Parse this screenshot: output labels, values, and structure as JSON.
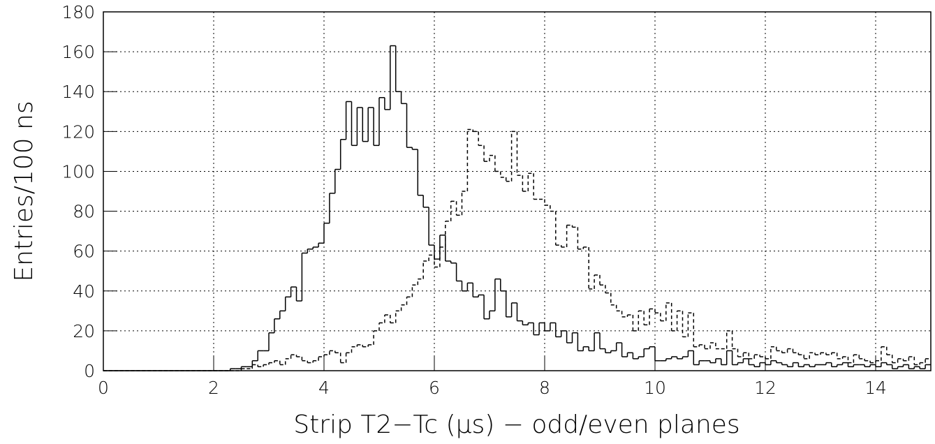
{
  "chart_data": {
    "type": "histogram",
    "xlabel": "Strip T2−Tc (μs) − odd/even planes",
    "ylabel": "Entries/100 ns",
    "bins": [
      0,
      0.1,
      0.2,
      0.3,
      0.4,
      0.5,
      0.6,
      0.7,
      0.8,
      0.9,
      1,
      1.1,
      1.2,
      1.3,
      1.4,
      1.5,
      1.6,
      1.7,
      1.8,
      1.9,
      2,
      2.1,
      2.2,
      2.3,
      2.4,
      2.5,
      2.6,
      2.7,
      2.8,
      2.9,
      3,
      3.1,
      3.2,
      3.3,
      3.4,
      3.5,
      3.6,
      3.7,
      3.8,
      3.9,
      4,
      4.1,
      4.2,
      4.3,
      4.4,
      4.5,
      4.6,
      4.7,
      4.8,
      4.9,
      5,
      5.1,
      5.2,
      5.3,
      5.4,
      5.5,
      5.6,
      5.7,
      5.8,
      5.9,
      6,
      6.1,
      6.2,
      6.3,
      6.4,
      6.5,
      6.6,
      6.7,
      6.8,
      6.9,
      7,
      7.1,
      7.2,
      7.3,
      7.4,
      7.5,
      7.6,
      7.7,
      7.8,
      7.9,
      8,
      8.1,
      8.2,
      8.3,
      8.4,
      8.5,
      8.6,
      8.7,
      8.8,
      8.9,
      9,
      9.1,
      9.2,
      9.3,
      9.4,
      9.5,
      9.6,
      9.7,
      9.8,
      9.9,
      10,
      10.1,
      10.2,
      10.3,
      10.4,
      10.5,
      10.6,
      10.7,
      10.8,
      10.9,
      11,
      11.1,
      11.2,
      11.3,
      11.4,
      11.5,
      11.6,
      11.7,
      11.8,
      11.9,
      12,
      12.1,
      12.2,
      12.3,
      12.4,
      12.5,
      12.6,
      12.7,
      12.8,
      12.9,
      13,
      13.1,
      13.2,
      13.3,
      13.4,
      13.5,
      13.6,
      13.7,
      13.8,
      13.9,
      14,
      14.1,
      14.2,
      14.3,
      14.4,
      14.5,
      14.6,
      14.7,
      14.8,
      14.9,
      15
    ],
    "series": [
      {
        "color": "#000000",
        "dash": "solid",
        "values": [
          0,
          0,
          0,
          0,
          0,
          0,
          0,
          0,
          0,
          0,
          0,
          0,
          0,
          0,
          0,
          0,
          0,
          0,
          0,
          0,
          0,
          0,
          0,
          1,
          1,
          2,
          2,
          5,
          10,
          10,
          19,
          26,
          30,
          37,
          42,
          35,
          59,
          61,
          62,
          64,
          74,
          89,
          101,
          116,
          135,
          113,
          132,
          115,
          132,
          113,
          137,
          131,
          163,
          140,
          134,
          112,
          111,
          88,
          82,
          63,
          56,
          68,
          55,
          54,
          45,
          40,
          44,
          37,
          38,
          26,
          30,
          46,
          40,
          27,
          34,
          25,
          23,
          24,
          18,
          24,
          20,
          24,
          17,
          20,
          14,
          19,
          10,
          12,
          10,
          19,
          11,
          9,
          10,
          14,
          7,
          9,
          6,
          7,
          11,
          12,
          5,
          5,
          6,
          7,
          6,
          7,
          10,
          3,
          5,
          5,
          4,
          6,
          3,
          10,
          3,
          4,
          6,
          3,
          2,
          4,
          3,
          5,
          4,
          3,
          2,
          4,
          2,
          3,
          2,
          3,
          3,
          4,
          2,
          3,
          4,
          2,
          3,
          3,
          2,
          3,
          2,
          4,
          3,
          1,
          2,
          3,
          1,
          2,
          1,
          3
        ]
      },
      {
        "color": "#000000",
        "dash": "dashed",
        "values": [
          0,
          0,
          0,
          0,
          0,
          0,
          0,
          0,
          0,
          0,
          0,
          0,
          0,
          0,
          0,
          0,
          0,
          0,
          0,
          0,
          0,
          0,
          0,
          0,
          0,
          1,
          1,
          3,
          2,
          3,
          4,
          5,
          3,
          6,
          8,
          7,
          5,
          4,
          5,
          7,
          8,
          10,
          9,
          4,
          9,
          12,
          13,
          12,
          13,
          20,
          24,
          28,
          24,
          30,
          33,
          37,
          43,
          46,
          55,
          58,
          52,
          62,
          75,
          85,
          78,
          90,
          121,
          120,
          113,
          105,
          108,
          100,
          97,
          95,
          120,
          98,
          90,
          99,
          86,
          86,
          83,
          80,
          63,
          62,
          73,
          72,
          61,
          62,
          41,
          48,
          43,
          39,
          33,
          30,
          27,
          28,
          20,
          30,
          23,
          31,
          29,
          25,
          34,
          20,
          30,
          17,
          29,
          12,
          13,
          11,
          14,
          11,
          11,
          20,
          11,
          7,
          9,
          6,
          8,
          7,
          6,
          12,
          10,
          9,
          11,
          9,
          8,
          6,
          9,
          8,
          9,
          8,
          9,
          6,
          7,
          4,
          8,
          6,
          5,
          4,
          5,
          12,
          8,
          4,
          6,
          5,
          7,
          3,
          4,
          6
        ]
      }
    ],
    "xlim": [
      0,
      15
    ],
    "xticks": [
      0,
      2,
      4,
      6,
      8,
      10,
      12,
      14
    ],
    "ylim": [
      0,
      180
    ],
    "yticks": [
      0,
      20,
      40,
      60,
      80,
      100,
      120,
      140,
      160,
      180
    ],
    "grid": true
  }
}
